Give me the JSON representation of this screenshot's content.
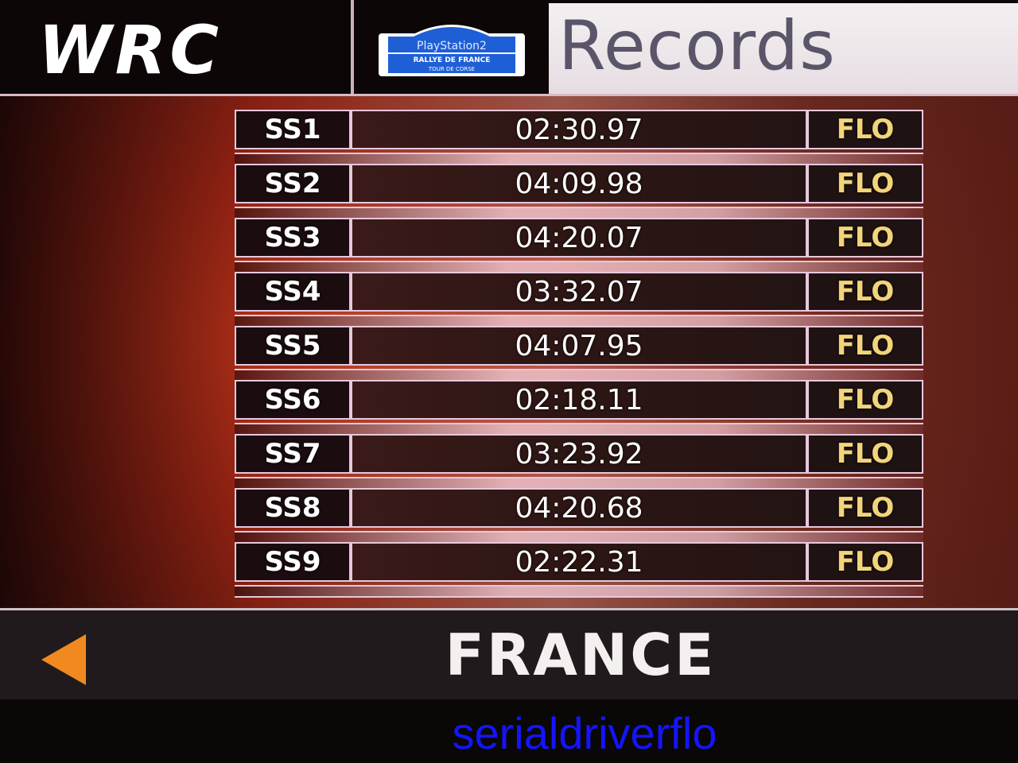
{
  "header": {
    "brand": "WRC",
    "rally_logo": {
      "line1": "PlayStation2",
      "line2": "RALLYE DE FRANCE",
      "line3": "TOUR DE CORSE"
    },
    "title": "Records"
  },
  "records": [
    {
      "stage": "SS1",
      "time": "02:30.97",
      "name": "FLO"
    },
    {
      "stage": "SS2",
      "time": "04:09.98",
      "name": "FLO"
    },
    {
      "stage": "SS3",
      "time": "04:20.07",
      "name": "FLO"
    },
    {
      "stage": "SS4",
      "time": "03:32.07",
      "name": "FLO"
    },
    {
      "stage": "SS5",
      "time": "04:07.95",
      "name": "FLO"
    },
    {
      "stage": "SS6",
      "time": "02:18.11",
      "name": "FLO"
    },
    {
      "stage": "SS7",
      "time": "03:23.92",
      "name": "FLO"
    },
    {
      "stage": "SS8",
      "time": "04:20.68",
      "name": "FLO"
    },
    {
      "stage": "SS9",
      "time": "02:22.31",
      "name": "FLO"
    }
  ],
  "footer": {
    "country": "FRANCE",
    "prev_icon": "arrow-left-icon"
  },
  "watermark": "serialdriverflo",
  "colors": {
    "accent": "#f08a20",
    "name_text": "#f2d47a",
    "watermark": "#1414ff"
  }
}
